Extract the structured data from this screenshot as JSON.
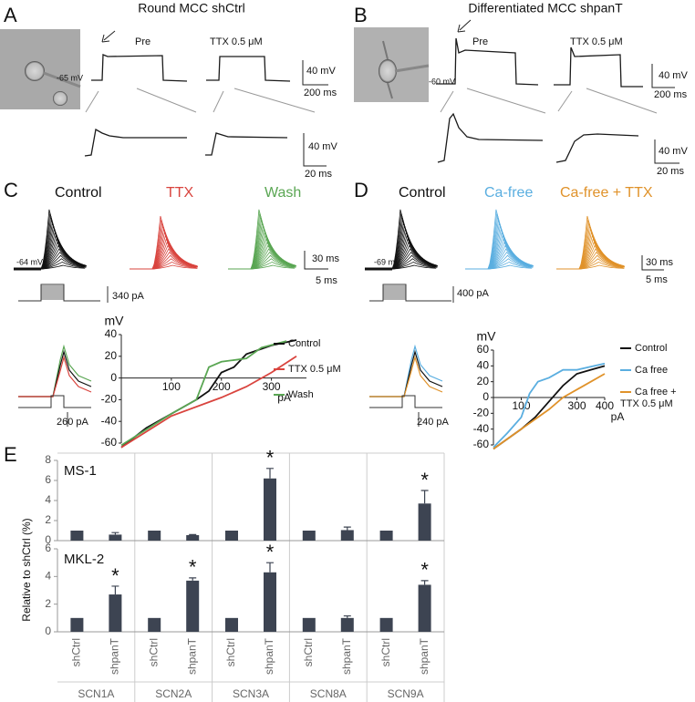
{
  "figure": {
    "A": {
      "label": "A",
      "title": "Round MCC shCtrl",
      "conditions": [
        "Pre",
        "TTX 0.5 μM"
      ],
      "rest": "-65 mV",
      "scales": [
        "40 mV",
        "200 ms",
        "40 mV",
        "20 ms"
      ]
    },
    "B": {
      "label": "B",
      "title": "Differentiated MCC shpanT",
      "conditions": [
        "Pre",
        "TTX 0.5 μM"
      ],
      "rest": "-60 mV",
      "scales": [
        "40 mV",
        "200 ms",
        "40 mV",
        "20 ms"
      ]
    },
    "C": {
      "label": "C",
      "conditions": [
        "Control",
        "TTX",
        "Wash"
      ],
      "rest": "-64 mV",
      "scales": [
        "30 ms",
        "5 ms"
      ],
      "stimuli": [
        "340 pA",
        "260 pA"
      ]
    },
    "D": {
      "label": "D",
      "conditions": [
        "Control",
        "Ca-free",
        "Ca-free + TTX"
      ],
      "rest": "-69 mV",
      "scales": [
        "30 ms",
        "5 ms"
      ],
      "stimuli": [
        "400 pA",
        "240 pA"
      ]
    },
    "E": {
      "label": "E"
    }
  },
  "chart_data": [
    {
      "type": "line",
      "y_label": "mV",
      "x_label": "pA",
      "xlim": [
        0,
        370
      ],
      "ylim": [
        -60,
        40
      ],
      "xticks": [
        100,
        200,
        300
      ],
      "yticks": [
        -60,
        -40,
        -20,
        0,
        20,
        40
      ],
      "series": [
        {
          "name": "Control",
          "color": "#111111",
          "x": [
            0,
            50,
            100,
            150,
            175,
            200,
            225,
            250,
            300,
            350
          ],
          "values": [
            -64,
            -46,
            -33,
            -20,
            -12,
            5,
            10,
            22,
            30,
            35
          ]
        },
        {
          "name": "TTX 0.5 μM",
          "color": "#d9443e",
          "x": [
            0,
            100,
            200,
            250,
            300,
            350
          ],
          "values": [
            -64,
            -35,
            -18,
            -8,
            5,
            20
          ]
        },
        {
          "name": "Wash",
          "color": "#5aa653",
          "x": [
            0,
            100,
            150,
            175,
            200,
            250,
            280,
            330
          ],
          "values": [
            -62,
            -33,
            -20,
            10,
            15,
            18,
            28,
            34
          ]
        }
      ]
    },
    {
      "type": "line",
      "y_label": "mV",
      "x_label": "pA",
      "xlim": [
        0,
        400
      ],
      "ylim": [
        -60,
        60
      ],
      "xticks": [
        100,
        300,
        400
      ],
      "yticks": [
        -60,
        -40,
        -20,
        0,
        20,
        40,
        60
      ],
      "series": [
        {
          "name": "Control",
          "color": "#111111",
          "x": [
            0,
            100,
            150,
            200,
            250,
            300,
            350,
            400
          ],
          "values": [
            -65,
            -40,
            -25,
            -5,
            15,
            30,
            35,
            40
          ]
        },
        {
          "name": "Ca free",
          "color": "#5aaee0",
          "x": [
            0,
            50,
            100,
            130,
            160,
            200,
            250,
            300,
            400
          ],
          "values": [
            -63,
            -45,
            -25,
            5,
            20,
            25,
            35,
            35,
            43
          ]
        },
        {
          "name": "Ca free + TTX 0.5 μM",
          "color": "#e0922a",
          "x": [
            0,
            100,
            200,
            250,
            300,
            350,
            400
          ],
          "values": [
            -65,
            -40,
            -15,
            0,
            10,
            20,
            30
          ]
        }
      ]
    },
    {
      "type": "bar",
      "title": "MS-1",
      "ylim": [
        0,
        8
      ],
      "yticks": [
        0,
        2,
        4,
        6,
        8
      ],
      "annotation": "*",
      "series": [
        {
          "color": "#3d4452",
          "values": [
            1,
            1,
            1,
            1,
            1
          ]
        },
        {
          "color": "#3d4452",
          "values": [
            0.6,
            0.55,
            6.2,
            1.05,
            3.7
          ],
          "errors": [
            0.2,
            0.05,
            1.0,
            0.3,
            1.3
          ],
          "significant": [
            false,
            false,
            true,
            false,
            true
          ]
        }
      ]
    },
    {
      "type": "bar",
      "title": "MKL-2",
      "y_label": "Relative to shCtrl (%)",
      "ylim": [
        0,
        6
      ],
      "yticks": [
        0,
        2,
        4,
        6
      ],
      "annotation": "*",
      "categories": [
        "SCN1A",
        "SCN2A",
        "SCN3A",
        "SCN8A",
        "SCN9A"
      ],
      "series": [
        {
          "name": "shCtrl",
          "color": "#3d4452",
          "values": [
            1,
            1,
            1,
            1,
            1
          ]
        },
        {
          "name": "shpanT",
          "color": "#3d4452",
          "values": [
            2.7,
            3.7,
            4.3,
            1.0,
            3.4
          ],
          "errors": [
            0.6,
            0.2,
            0.7,
            0.15,
            0.3
          ],
          "significant": [
            true,
            true,
            true,
            false,
            true
          ]
        }
      ]
    }
  ]
}
